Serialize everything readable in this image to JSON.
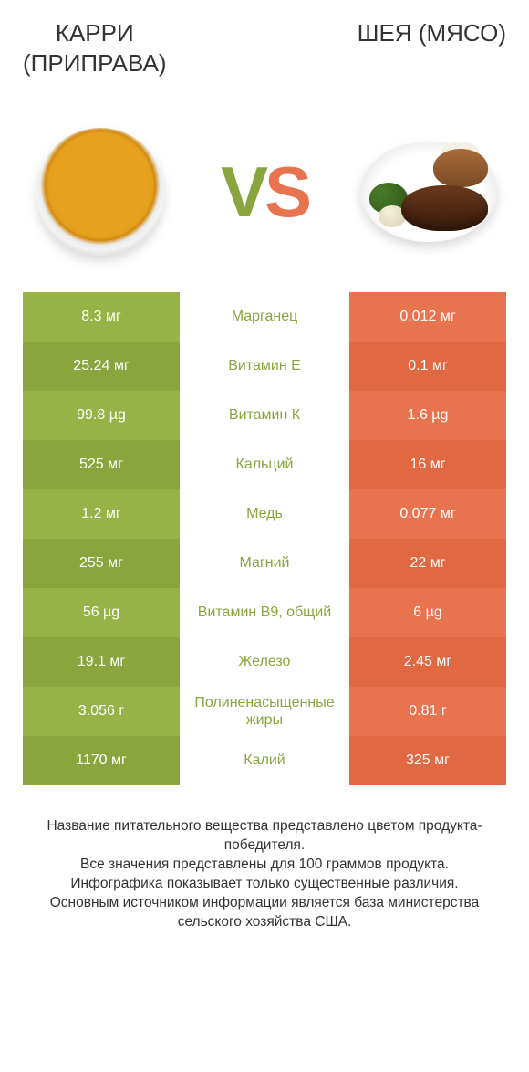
{
  "left_title": "КАРРИ\n(ПРИПРАВА)",
  "right_title": "ШЕЯ (МЯСО)",
  "vs_letters": {
    "v": "V",
    "s": "S"
  },
  "colors": {
    "left_odd": "#97b347",
    "left_even": "#8aa53e",
    "right_odd": "#e7734f",
    "right_even": "#e06842",
    "label_winner_left": "#8aa53e",
    "label_winner_right": "#e06842",
    "vs_v": "#8aa53e",
    "vs_s": "#e7734f"
  },
  "rows": [
    {
      "left": "8.3 мг",
      "label": "Марганец",
      "right": "0.012 мг",
      "winner": "left"
    },
    {
      "left": "25.24 мг",
      "label": "Витамин Е",
      "right": "0.1 мг",
      "winner": "left"
    },
    {
      "left": "99.8 µg",
      "label": "Витамин К",
      "right": "1.6 µg",
      "winner": "left"
    },
    {
      "left": "525 мг",
      "label": "Кальций",
      "right": "16 мг",
      "winner": "left"
    },
    {
      "left": "1.2 мг",
      "label": "Медь",
      "right": "0.077 мг",
      "winner": "left"
    },
    {
      "left": "255 мг",
      "label": "Магний",
      "right": "22 мг",
      "winner": "left"
    },
    {
      "left": "56 µg",
      "label": "Витамин B9, общий",
      "right": "6 µg",
      "winner": "left"
    },
    {
      "left": "19.1 мг",
      "label": "Железо",
      "right": "2.45 мг",
      "winner": "left"
    },
    {
      "left": "3.056 г",
      "label": "Полиненасыщенные жиры",
      "right": "0.81 г",
      "winner": "left"
    },
    {
      "left": "1170 мг",
      "label": "Калий",
      "right": "325 мг",
      "winner": "left"
    }
  ],
  "footer_lines": [
    "Название питательного вещества представлено цветом продукта-победителя.",
    "Все значения представлены для 100 граммов продукта.",
    "Инфографика показывает только существенные различия.",
    "Основным источником информации является база министерства сельского хозяйства США."
  ]
}
